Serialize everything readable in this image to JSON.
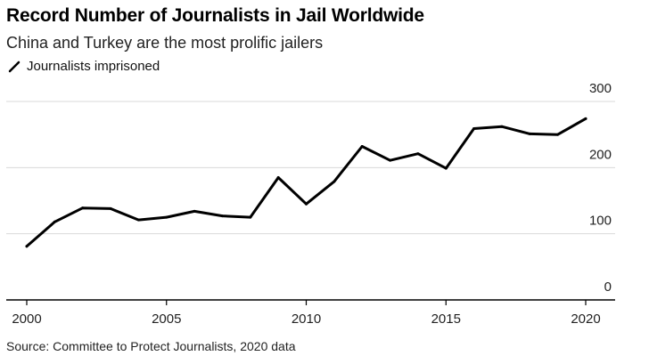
{
  "chart_data": {
    "type": "line",
    "title": "Record Number of Journalists in Jail Worldwide",
    "subtitle": "China and Turkey are the most prolific jailers",
    "legend": [
      "Journalists imprisoned"
    ],
    "source": "Source: Committee to Protect Journalists, 2020 data",
    "x": [
      2000,
      2001,
      2002,
      2003,
      2004,
      2005,
      2006,
      2007,
      2008,
      2009,
      2010,
      2011,
      2012,
      2013,
      2014,
      2015,
      2016,
      2017,
      2018,
      2019,
      2020
    ],
    "series": [
      {
        "name": "Journalists imprisoned",
        "values": [
          81,
          118,
          139,
          138,
          121,
          125,
          134,
          127,
          125,
          185,
          145,
          179,
          232,
          211,
          221,
          199,
          259,
          262,
          251,
          250,
          274
        ]
      }
    ],
    "xticks": [
      "2000",
      "2005",
      "2010",
      "2015",
      "2020"
    ],
    "yticks": [
      "0",
      "100",
      "200",
      "300"
    ],
    "xlim": [
      2000,
      2020
    ],
    "ylim": [
      0,
      300
    ],
    "colors": {
      "line": "#000000",
      "grid": "#d9d9d9",
      "axis": "#000000"
    }
  }
}
